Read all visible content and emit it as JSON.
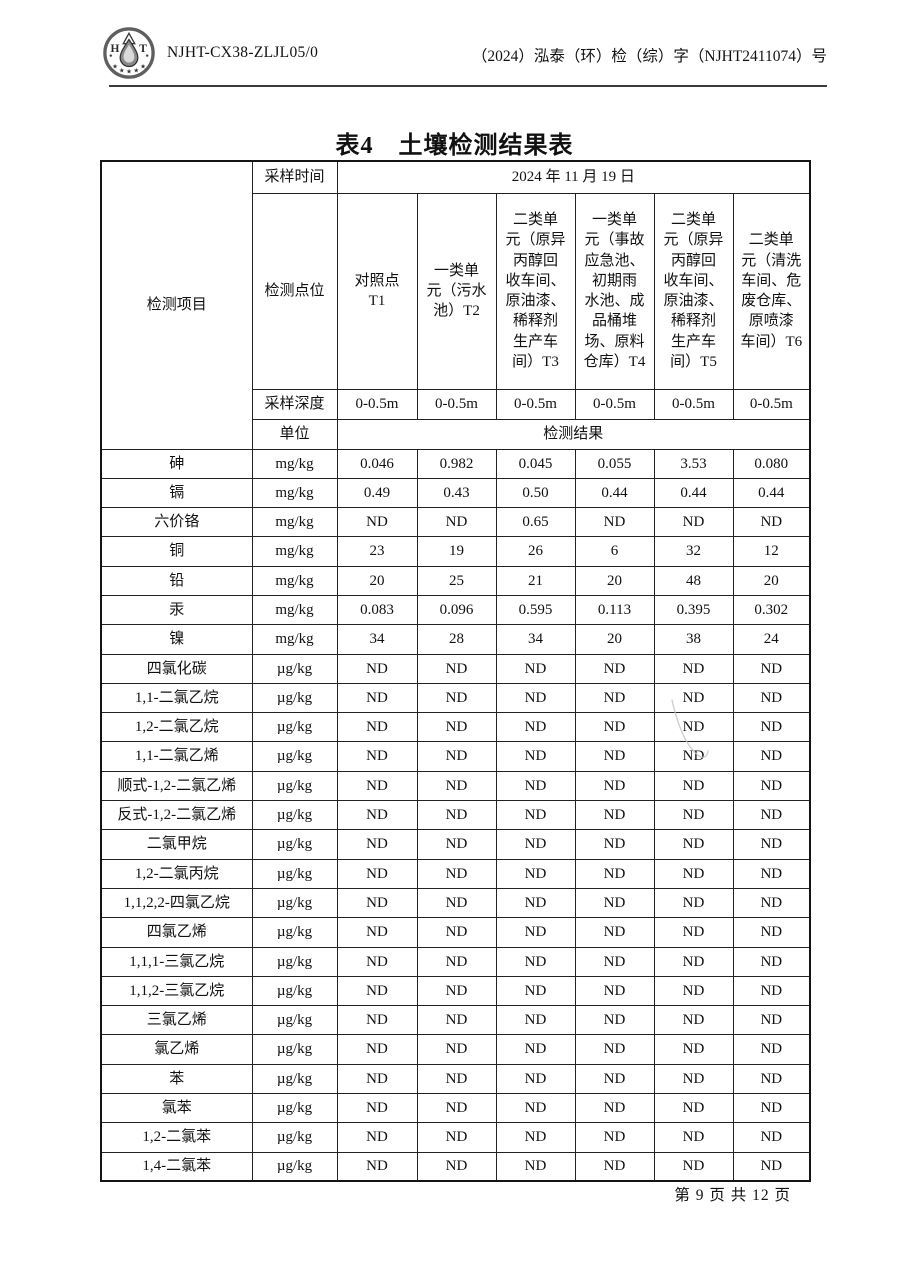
{
  "header": {
    "doc_code": "NJHT-CX38-ZLJL05/0",
    "doc_number": "（2024）泓泰（环）检（综）字（NJHT2411074）号"
  },
  "logo": {
    "letter_h": "H",
    "letter_t": "T",
    "star": "★"
  },
  "footer": {
    "page_text": "第 9 页 共 12 页"
  },
  "table": {
    "title": "表4　土壤检测结果表",
    "item_label": "检测项目",
    "sample_time_label": "采样时间",
    "sample_time_value": "2024 年 11 月 19 日",
    "point_label": "检测点位",
    "points": [
      "对照点\nT1",
      "一类单\n元（污水\n池）T2",
      "二类单\n元（原异\n丙醇回\n收车间、\n原油漆、\n稀释剂\n生产车\n间）T3",
      "一类单\n元（事故\n应急池、\n初期雨\n水池、成\n品桶堆\n场、原料\n仓库）T4",
      "二类单\n元（原异\n丙醇回\n收车间、\n原油漆、\n稀释剂\n生产车\n间）T5",
      "二类单\n元（清洗\n车间、危\n废仓库、\n原喷漆\n车间）T6"
    ],
    "depth_label": "采样深度",
    "depths": [
      "0-0.5m",
      "0-0.5m",
      "0-0.5m",
      "0-0.5m",
      "0-0.5m",
      "0-0.5m"
    ],
    "unit_label": "单位",
    "result_label": "检测结果",
    "rows": [
      {
        "item": "砷",
        "unit": "mg/kg",
        "values": [
          "0.046",
          "0.982",
          "0.045",
          "0.055",
          "3.53",
          "0.080"
        ]
      },
      {
        "item": "镉",
        "unit": "mg/kg",
        "values": [
          "0.49",
          "0.43",
          "0.50",
          "0.44",
          "0.44",
          "0.44"
        ]
      },
      {
        "item": "六价铬",
        "unit": "mg/kg",
        "values": [
          "ND",
          "ND",
          "0.65",
          "ND",
          "ND",
          "ND"
        ]
      },
      {
        "item": "铜",
        "unit": "mg/kg",
        "values": [
          "23",
          "19",
          "26",
          "6",
          "32",
          "12"
        ]
      },
      {
        "item": "铅",
        "unit": "mg/kg",
        "values": [
          "20",
          "25",
          "21",
          "20",
          "48",
          "20"
        ]
      },
      {
        "item": "汞",
        "unit": "mg/kg",
        "values": [
          "0.083",
          "0.096",
          "0.595",
          "0.113",
          "0.395",
          "0.302"
        ]
      },
      {
        "item": "镍",
        "unit": "mg/kg",
        "values": [
          "34",
          "28",
          "34",
          "20",
          "38",
          "24"
        ]
      },
      {
        "item": "四氯化碳",
        "unit": "µg/kg",
        "values": [
          "ND",
          "ND",
          "ND",
          "ND",
          "ND",
          "ND"
        ]
      },
      {
        "item": "1,1-二氯乙烷",
        "unit": "µg/kg",
        "values": [
          "ND",
          "ND",
          "ND",
          "ND",
          "ND",
          "ND"
        ]
      },
      {
        "item": "1,2-二氯乙烷",
        "unit": "µg/kg",
        "values": [
          "ND",
          "ND",
          "ND",
          "ND",
          "ND",
          "ND"
        ]
      },
      {
        "item": "1,1-二氯乙烯",
        "unit": "µg/kg",
        "values": [
          "ND",
          "ND",
          "ND",
          "ND",
          "ND",
          "ND"
        ]
      },
      {
        "item": "顺式-1,2-二氯乙烯",
        "unit": "µg/kg",
        "values": [
          "ND",
          "ND",
          "ND",
          "ND",
          "ND",
          "ND"
        ]
      },
      {
        "item": "反式-1,2-二氯乙烯",
        "unit": "µg/kg",
        "values": [
          "ND",
          "ND",
          "ND",
          "ND",
          "ND",
          "ND"
        ]
      },
      {
        "item": "二氯甲烷",
        "unit": "µg/kg",
        "values": [
          "ND",
          "ND",
          "ND",
          "ND",
          "ND",
          "ND"
        ]
      },
      {
        "item": "1,2-二氯丙烷",
        "unit": "µg/kg",
        "values": [
          "ND",
          "ND",
          "ND",
          "ND",
          "ND",
          "ND"
        ]
      },
      {
        "item": "1,1,2,2-四氯乙烷",
        "unit": "µg/kg",
        "values": [
          "ND",
          "ND",
          "ND",
          "ND",
          "ND",
          "ND"
        ]
      },
      {
        "item": "四氯乙烯",
        "unit": "µg/kg",
        "values": [
          "ND",
          "ND",
          "ND",
          "ND",
          "ND",
          "ND"
        ]
      },
      {
        "item": "1,1,1-三氯乙烷",
        "unit": "µg/kg",
        "values": [
          "ND",
          "ND",
          "ND",
          "ND",
          "ND",
          "ND"
        ]
      },
      {
        "item": "1,1,2-三氯乙烷",
        "unit": "µg/kg",
        "values": [
          "ND",
          "ND",
          "ND",
          "ND",
          "ND",
          "ND"
        ]
      },
      {
        "item": "三氯乙烯",
        "unit": "µg/kg",
        "values": [
          "ND",
          "ND",
          "ND",
          "ND",
          "ND",
          "ND"
        ]
      },
      {
        "item": "氯乙烯",
        "unit": "µg/kg",
        "values": [
          "ND",
          "ND",
          "ND",
          "ND",
          "ND",
          "ND"
        ]
      },
      {
        "item": "苯",
        "unit": "µg/kg",
        "values": [
          "ND",
          "ND",
          "ND",
          "ND",
          "ND",
          "ND"
        ]
      },
      {
        "item": "氯苯",
        "unit": "µg/kg",
        "values": [
          "ND",
          "ND",
          "ND",
          "ND",
          "ND",
          "ND"
        ]
      },
      {
        "item": "1,2-二氯苯",
        "unit": "µg/kg",
        "values": [
          "ND",
          "ND",
          "ND",
          "ND",
          "ND",
          "ND"
        ]
      },
      {
        "item": "1,4-二氯苯",
        "unit": "µg/kg",
        "values": [
          "ND",
          "ND",
          "ND",
          "ND",
          "ND",
          "ND"
        ]
      }
    ]
  }
}
